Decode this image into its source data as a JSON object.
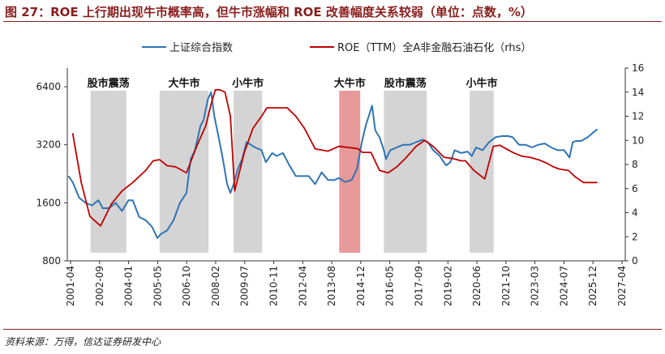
{
  "header": {
    "title": "图 27：ROE 上行期出现牛市概率高，但牛市涨幅和 ROE 改善幅度关系较弱（单位：点数，%）"
  },
  "footer": {
    "source": "资料来源：万得，信达证券研发中心"
  },
  "colors": {
    "title": "#8b1e1e",
    "index_series": "#2f75b5",
    "roe_series": "#c00000",
    "shade_gray": "#d4d4d4",
    "shade_red": "#e8999a"
  },
  "chart_data": {
    "type": "line",
    "title": "",
    "legend_position": "top",
    "x_tick_labels": [
      "2001-04",
      "2002-09",
      "2004-01",
      "2005-05",
      "2006-10",
      "2008-02",
      "2009-07",
      "2010-11",
      "2012-04",
      "2013-08",
      "2014-12",
      "2016-05",
      "2017-09",
      "2019-02",
      "2020-06",
      "2021-10",
      "2023-03",
      "2024-07",
      "2025-12",
      "2027-04"
    ],
    "xlim": [
      2001.25,
      2027.25
    ],
    "left_axis": {
      "scale": "log",
      "ticks": [
        800,
        1600,
        3200,
        6400
      ],
      "ylim": [
        800,
        8000
      ]
    },
    "right_axis": {
      "scale": "linear",
      "ticks": [
        0,
        2,
        4,
        6,
        8,
        10,
        12,
        14,
        16
      ],
      "ylim": [
        0,
        16
      ]
    },
    "regimes": [
      {
        "label": "股市震荡",
        "start": 2002.33,
        "end": 2004.0,
        "color": "gray"
      },
      {
        "label": "大牛市",
        "start": 2005.55,
        "end": 2007.83,
        "color": "gray"
      },
      {
        "label": "小牛市",
        "start": 2009.0,
        "end": 2010.33,
        "color": "gray"
      },
      {
        "label": "大牛市",
        "start": 2013.92,
        "end": 2014.9,
        "color": "red"
      },
      {
        "label": "股市震荡",
        "start": 2016.0,
        "end": 2018.0,
        "color": "gray"
      },
      {
        "label": "小牛市",
        "start": 2020.0,
        "end": 2021.12,
        "color": "gray"
      }
    ],
    "series": [
      {
        "name": "上证综合指数",
        "axis": "left",
        "x": [
          2001.3,
          2001.5,
          2001.8,
          2002.1,
          2002.4,
          2002.7,
          2002.9,
          2003.2,
          2003.5,
          2003.8,
          2004.1,
          2004.3,
          2004.6,
          2004.9,
          2005.2,
          2005.45,
          2005.6,
          2005.9,
          2006.2,
          2006.5,
          2006.8,
          2007.0,
          2007.2,
          2007.45,
          2007.6,
          2007.8,
          2007.95,
          2008.1,
          2008.3,
          2008.5,
          2008.7,
          2008.85,
          2009.0,
          2009.2,
          2009.4,
          2009.6,
          2009.8,
          2010.0,
          2010.3,
          2010.5,
          2010.8,
          2011.0,
          2011.3,
          2011.6,
          2011.9,
          2012.2,
          2012.5,
          2012.8,
          2013.1,
          2013.4,
          2013.7,
          2013.9,
          2014.2,
          2014.5,
          2014.75,
          2014.95,
          2015.15,
          2015.35,
          2015.45,
          2015.6,
          2015.8,
          2016.0,
          2016.1,
          2016.3,
          2016.6,
          2016.9,
          2017.2,
          2017.5,
          2017.8,
          2018.05,
          2018.3,
          2018.6,
          2018.9,
          2019.1,
          2019.3,
          2019.6,
          2019.9,
          2020.1,
          2020.3,
          2020.6,
          2020.9,
          2021.2,
          2021.5,
          2021.8,
          2022.0,
          2022.3,
          2022.6,
          2022.9,
          2023.2,
          2023.5,
          2023.8,
          2024.1,
          2024.4,
          2024.65,
          2024.8,
          2024.95,
          2025.2,
          2025.5,
          2025.75,
          2025.95
        ],
        "values": [
          2200,
          2050,
          1700,
          1600,
          1550,
          1650,
          1500,
          1500,
          1600,
          1450,
          1650,
          1650,
          1350,
          1300,
          1200,
          1050,
          1100,
          1150,
          1300,
          1600,
          1800,
          2700,
          3000,
          4000,
          4300,
          5500,
          6000,
          4500,
          3500,
          2700,
          2000,
          1800,
          2000,
          2400,
          2700,
          3300,
          3200,
          3100,
          3000,
          2600,
          2900,
          2800,
          2900,
          2500,
          2200,
          2200,
          2200,
          2000,
          2300,
          2100,
          2100,
          2150,
          2050,
          2100,
          2400,
          3200,
          4000,
          4700,
          5100,
          3800,
          3500,
          3000,
          2700,
          3000,
          3100,
          3200,
          3200,
          3300,
          3400,
          3300,
          3000,
          2800,
          2500,
          2600,
          3000,
          2900,
          2950,
          2800,
          3100,
          3000,
          3300,
          3500,
          3550,
          3550,
          3500,
          3200,
          3200,
          3100,
          3200,
          3250,
          3100,
          3000,
          3000,
          2750,
          3300,
          3350,
          3350,
          3500,
          3700,
          3850
        ]
      },
      {
        "name": "ROE（TTM）全A非金融石油石化（rhs）",
        "axis": "right",
        "x": [
          2001.5,
          2001.9,
          2002.3,
          2002.8,
          2003.3,
          2003.8,
          2004.3,
          2004.9,
          2005.25,
          2005.55,
          2005.9,
          2006.3,
          2006.8,
          2007.3,
          2007.7,
          2007.95,
          2008.15,
          2008.35,
          2008.6,
          2008.85,
          2009.05,
          2009.5,
          2009.9,
          2010.3,
          2010.55,
          2011.0,
          2011.5,
          2011.9,
          2012.3,
          2012.8,
          2013.4,
          2013.9,
          2014.4,
          2014.8,
          2015.0,
          2015.4,
          2015.8,
          2016.2,
          2016.6,
          2017.0,
          2017.5,
          2017.9,
          2018.3,
          2018.8,
          2019.2,
          2019.6,
          2019.8,
          2020.2,
          2020.7,
          2021.1,
          2021.4,
          2021.7,
          2022.0,
          2022.4,
          2022.8,
          2023.2,
          2023.6,
          2023.9,
          2024.2,
          2024.6,
          2024.9,
          2025.3,
          2025.7,
          2025.95
        ],
        "values": [
          10.6,
          6.5,
          3.7,
          2.9,
          4.7,
          5.8,
          6.5,
          7.5,
          8.3,
          8.4,
          7.9,
          7.8,
          7.3,
          9.6,
          11.2,
          13.0,
          14.2,
          14.2,
          14.0,
          12.0,
          5.8,
          9.0,
          11.0,
          12.0,
          12.7,
          12.7,
          12.7,
          12.0,
          11.0,
          9.3,
          9.1,
          9.5,
          9.4,
          9.3,
          9.0,
          9.0,
          7.5,
          7.3,
          7.8,
          8.5,
          9.5,
          10.0,
          9.5,
          8.6,
          8.5,
          8.3,
          8.3,
          7.5,
          6.8,
          9.5,
          9.6,
          9.3,
          9.0,
          8.7,
          8.6,
          8.4,
          8.1,
          7.8,
          7.6,
          7.5,
          7.0,
          6.5,
          6.5,
          6.5
        ]
      }
    ]
  }
}
